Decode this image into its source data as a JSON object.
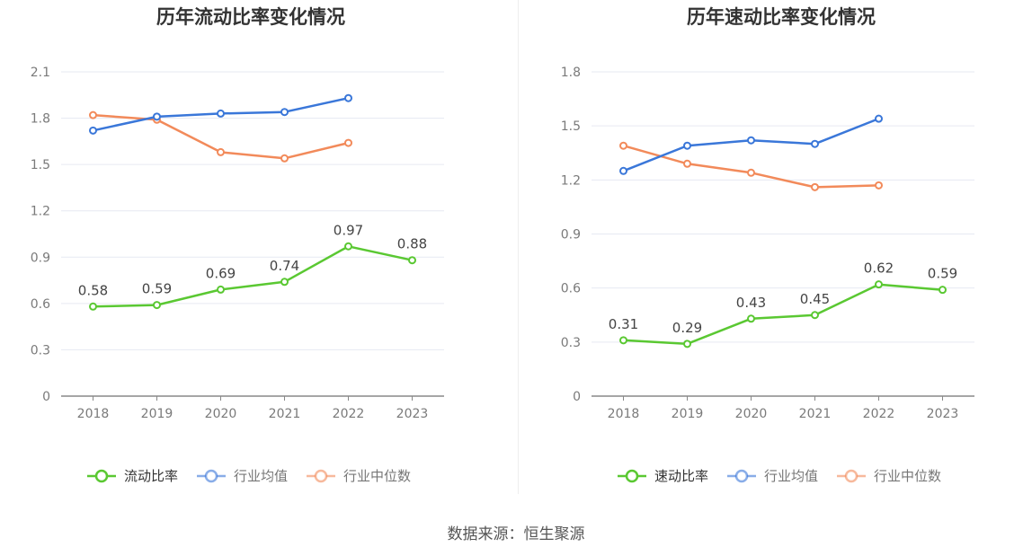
{
  "source": "数据来源：恒生聚源",
  "colors": {
    "green": "#5ac832",
    "blue": "#3a77d9",
    "orange": "#f28a5a"
  },
  "chart_data": [
    {
      "type": "line",
      "title": "历年流动比率变化情况",
      "categories": [
        "2018",
        "2019",
        "2020",
        "2021",
        "2022",
        "2023"
      ],
      "ylim": [
        0,
        2.1
      ],
      "yticks": [
        "0",
        "0.3",
        "0.6",
        "0.9",
        "1.2",
        "1.5",
        "1.8",
        "2.1"
      ],
      "grid": true,
      "legend_position": "bottom",
      "series": [
        {
          "name": "流动比率",
          "color": "#5ac832",
          "labels": true,
          "values": [
            0.58,
            0.59,
            0.69,
            0.74,
            0.97,
            0.88
          ]
        },
        {
          "name": "行业均值",
          "color": "#3a77d9",
          "labels": false,
          "values": [
            1.72,
            1.81,
            1.83,
            1.84,
            1.93,
            null
          ]
        },
        {
          "name": "行业中位数",
          "color": "#f28a5a",
          "labels": false,
          "values": [
            1.82,
            1.79,
            1.58,
            1.54,
            1.64,
            null
          ]
        }
      ]
    },
    {
      "type": "line",
      "title": "历年速动比率变化情况",
      "categories": [
        "2018",
        "2019",
        "2020",
        "2021",
        "2022",
        "2023"
      ],
      "ylim": [
        0,
        1.8
      ],
      "yticks": [
        "0",
        "0.3",
        "0.6",
        "0.9",
        "1.2",
        "1.5",
        "1.8"
      ],
      "grid": true,
      "legend_position": "bottom",
      "series": [
        {
          "name": "速动比率",
          "color": "#5ac832",
          "labels": true,
          "values": [
            0.31,
            0.29,
            0.43,
            0.45,
            0.62,
            0.59
          ]
        },
        {
          "name": "行业均值",
          "color": "#3a77d9",
          "labels": false,
          "values": [
            1.25,
            1.39,
            1.42,
            1.4,
            1.54,
            null
          ]
        },
        {
          "name": "行业中位数",
          "color": "#f28a5a",
          "labels": false,
          "values": [
            1.39,
            1.29,
            1.24,
            1.16,
            1.17,
            null
          ]
        }
      ]
    }
  ]
}
